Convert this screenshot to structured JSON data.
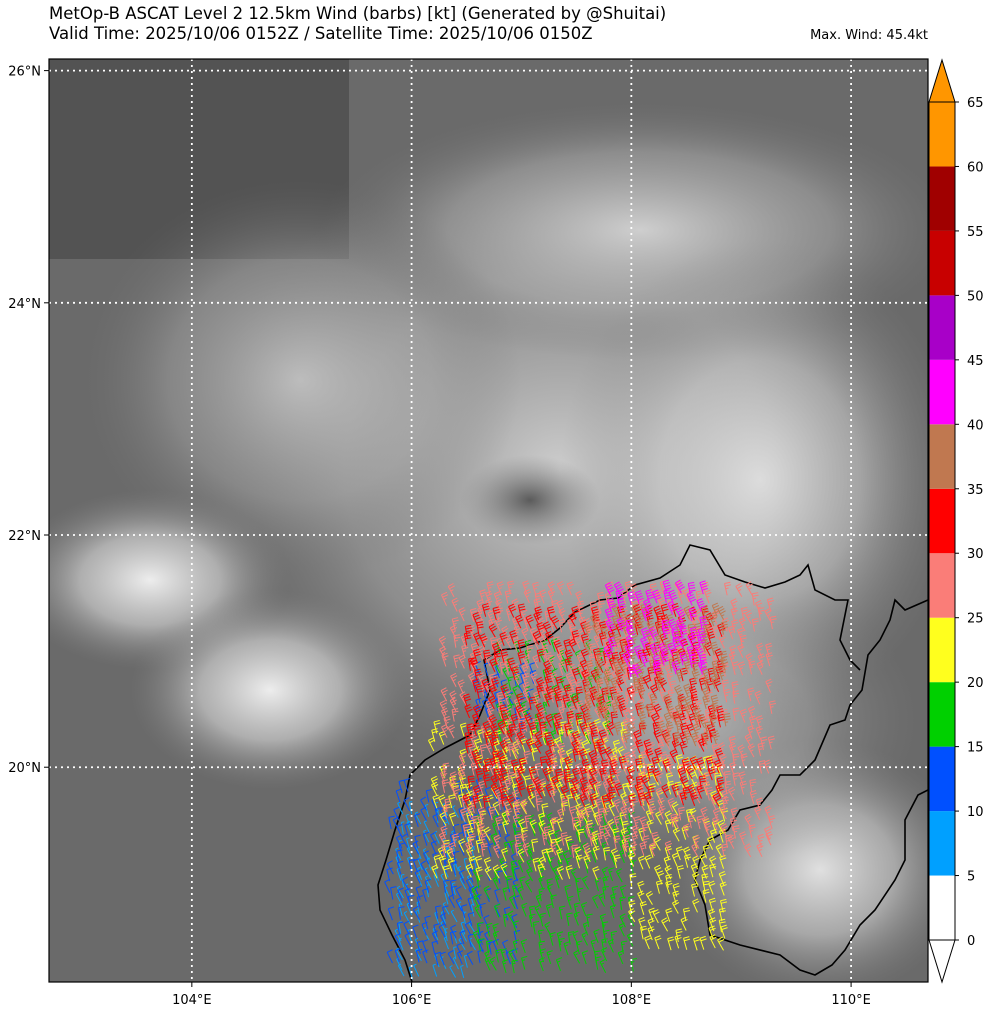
{
  "header": {
    "title_line1": "MetOp-B ASCAT Level 2 12.5km Wind (barbs) [kt] (Generated by @Shuitai)",
    "title_line2": "Valid Time: 2025/10/06 0152Z / Satellite Time: 2025/10/06 0150Z",
    "max_wind": "Max. Wind: 45.4kt"
  },
  "chart_data": {
    "type": "map",
    "x_axis": {
      "ticks": [
        104,
        106,
        108,
        110
      ],
      "tick_labels": [
        "104°E",
        "106°E",
        "108°E",
        "110°E"
      ],
      "range": [
        102.7,
        110.7
      ]
    },
    "y_axis": {
      "ticks": [
        20,
        22,
        24,
        26
      ],
      "tick_labels": [
        "20°N",
        "22°N",
        "24°N",
        "26°N"
      ],
      "range": [
        18.15,
        26.1
      ]
    },
    "grid": true,
    "colorbar": {
      "levels": [
        0,
        5,
        10,
        15,
        20,
        25,
        30,
        35,
        40,
        45,
        50,
        55,
        60,
        65
      ],
      "labels": [
        "0",
        "5",
        "10",
        "15",
        "20",
        "25",
        "30",
        "35",
        "40",
        "45",
        "50",
        "55",
        "60",
        "65"
      ],
      "colors": [
        "#ffffff",
        "#00a0ff",
        "#0050ff",
        "#00d000",
        "#ffff1e",
        "#fa7d78",
        "#ff0000",
        "#c07850",
        "#ff00ff",
        "#a800c8",
        "#c80000",
        "#a00000",
        "#ff9600"
      ],
      "extend": "both"
    },
    "swath_bins": [
      {
        "kt": 7.5,
        "lon": [
          105.9,
          106.6
        ],
        "lat": [
          18.2,
          19.6
        ]
      },
      {
        "kt": 12.5,
        "lon": [
          105.8,
          107.0
        ],
        "lat": [
          18.3,
          19.8
        ]
      },
      {
        "kt": 12.5,
        "lon": [
          106.6,
          107.1
        ],
        "lat": [
          20.3,
          20.8
        ]
      },
      {
        "kt": 17.5,
        "lon": [
          106.6,
          108.0
        ],
        "lat": [
          18.2,
          19.5
        ]
      },
      {
        "kt": 17.5,
        "lon": [
          106.8,
          107.8
        ],
        "lat": [
          20.2,
          21.0
        ]
      },
      {
        "kt": 22.5,
        "lon": [
          106.2,
          108.0
        ],
        "lat": [
          19.0,
          20.3
        ]
      },
      {
        "kt": 22.5,
        "lon": [
          108.0,
          108.9
        ],
        "lat": [
          18.4,
          20.0
        ]
      },
      {
        "kt": 27.5,
        "lon": [
          106.3,
          109.3
        ],
        "lat": [
          19.2,
          21.5
        ]
      },
      {
        "kt": 32.5,
        "lon": [
          106.5,
          108.8
        ],
        "lat": [
          19.6,
          21.3
        ]
      },
      {
        "kt": 37.5,
        "lon": [
          107.6,
          108.9
        ],
        "lat": [
          20.2,
          21.3
        ]
      },
      {
        "kt": 42.5,
        "lon": [
          107.8,
          108.7
        ],
        "lat": [
          20.8,
          21.5
        ]
      }
    ]
  }
}
